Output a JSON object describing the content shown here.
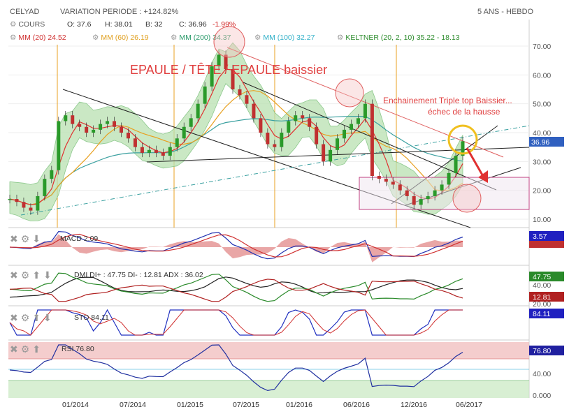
{
  "header": {
    "ticker": "CELYAD",
    "variation": "VARIATION PERIODE : +124.82%",
    "period": "5 ANS - HEBDO"
  },
  "legend": {
    "cours": "COURS",
    "open": "O: 37.6",
    "high": "H: 38.01",
    "low": "B: 32",
    "close": "C: 36.96",
    "change": "-1.99%",
    "mm20": "MM (20) 24.52",
    "mm60": "MM (60) 26.19",
    "mm200": "MM (200) 34.37",
    "mm100": "MM (100) 32.27",
    "keltner": "KELTNER (20, 2, 10) 35.22 - 18.13"
  },
  "annotations": {
    "pattern": "EPAULE / TÊTE / EPAULE baissier",
    "triple_top": "Enchainement Triple top Baissier...",
    "echec": "échec de la hausse"
  },
  "indicators": {
    "macd": "MACD 2.09",
    "macd_value": "3.57",
    "dmi": "DMI DI+ : 47.75 DI- : 12.81 ADX : 36.02",
    "dmi_plus": "47.75",
    "dmi_minus": "12.81",
    "sto": "STO 84.11",
    "sto_value": "84.11",
    "rsi": "RSI 76.80",
    "rsi_value": "76.80"
  },
  "chart_data": {
    "type": "line",
    "price_axis_ticks": [
      "70.00",
      "60.00",
      "50.00",
      "40.00",
      "30.00",
      "20.00",
      "10.00"
    ],
    "price_ylim": [
      6,
      76
    ],
    "last_price_label": "36.96",
    "dmi_axis_ticks": [
      "40.00",
      "20.00"
    ],
    "rsi_axis_ticks": [
      "40.00",
      "0.000"
    ],
    "x_ticks": [
      "01/2014",
      "07/2014",
      "01/2015",
      "07/2015",
      "01/2016",
      "06/2016",
      "12/2016",
      "06/2017"
    ],
    "series": [
      {
        "values": [
          17,
          16,
          14,
          13,
          18,
          24,
          27,
          44,
          46,
          43,
          42,
          40,
          41,
          43,
          44,
          42,
          40,
          38,
          35,
          33,
          34,
          33,
          32,
          35,
          38,
          42,
          45,
          50,
          56,
          63,
          67,
          62,
          55,
          53,
          50,
          45,
          40,
          36,
          35,
          40,
          44,
          46,
          45,
          42,
          36,
          30,
          34,
          38,
          41,
          43,
          45,
          50,
          25,
          24,
          23,
          22,
          20,
          18,
          15,
          17,
          18,
          20,
          22,
          26,
          32,
          37
        ]
      }
    ]
  },
  "colors": {
    "price": "#2a9a2a",
    "mm20": "#e03030",
    "mm60": "#e8a020",
    "mm200": "#3aa0a0",
    "mm100": "#30c0d0",
    "band": "#b8e0b0",
    "annotation": "#e04040",
    "highlight": "#f0c020",
    "dmi_plus": "#2a8a2a",
    "dmi_minus": "#b02020",
    "macd_box": "#2020c0",
    "rsi_box": "#2020a0",
    "sto_box": "#2020c0"
  }
}
